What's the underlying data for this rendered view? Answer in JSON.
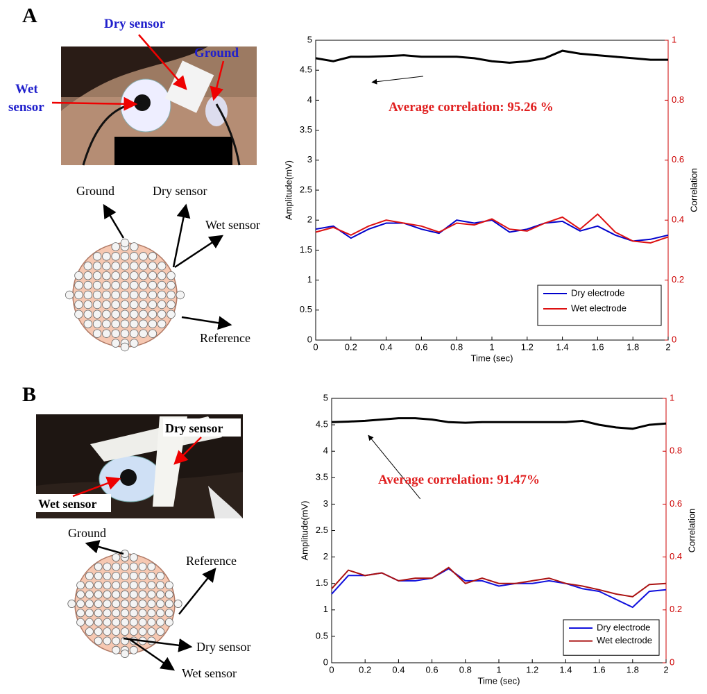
{
  "chart_data": [
    {
      "type": "line",
      "x": [
        0,
        0.1,
        0.2,
        0.3,
        0.4,
        0.5,
        0.6,
        0.7,
        0.8,
        0.9,
        1,
        1.1,
        1.2,
        1.3,
        1.4,
        1.5,
        1.6,
        1.7,
        1.8,
        1.9,
        2
      ],
      "xlabel": "Time (sec)",
      "ylabel": "Amplitude(mV)",
      "y2label": "Correlation",
      "xlim": [
        0,
        2
      ],
      "xticks": [
        0,
        0.2,
        0.4,
        0.6,
        0.8,
        1,
        1.2,
        1.4,
        1.6,
        1.8,
        2
      ],
      "ylim": [
        0,
        5
      ],
      "yticks": [
        0,
        0.5,
        1,
        1.5,
        2,
        2.5,
        3,
        3.5,
        4,
        4.5,
        5
      ],
      "y2lim": [
        0,
        1
      ],
      "y2ticks": [
        0,
        0.2,
        0.4,
        0.6,
        0.8,
        1
      ],
      "annotation": "Average correlation: 95.26 %",
      "legend": "lower right",
      "series": [
        {
          "axis": "y2",
          "color": "#000000",
          "values": [
            0.94,
            0.93,
            0.945,
            0.945,
            0.947,
            0.95,
            0.945,
            0.945,
            0.945,
            0.94,
            0.93,
            0.925,
            0.93,
            0.94,
            0.965,
            0.955,
            0.95,
            0.945,
            0.94,
            0.935,
            0.935
          ]
        },
        {
          "name": "Dry electrode",
          "color": "#0000cc",
          "values": [
            1.85,
            1.9,
            1.7,
            1.85,
            1.95,
            1.95,
            1.85,
            1.78,
            2.0,
            1.95,
            2.0,
            1.8,
            1.85,
            1.95,
            1.98,
            1.82,
            1.9,
            1.75,
            1.65,
            1.68,
            1.75
          ]
        },
        {
          "name": "Wet electrode",
          "color": "#dd1111",
          "values": [
            1.8,
            1.88,
            1.75,
            1.9,
            2.0,
            1.95,
            1.9,
            1.8,
            1.95,
            1.92,
            2.02,
            1.85,
            1.82,
            1.95,
            2.05,
            1.85,
            2.1,
            1.8,
            1.65,
            1.62,
            1.72
          ]
        }
      ]
    },
    {
      "type": "line",
      "x": [
        0,
        0.1,
        0.2,
        0.3,
        0.4,
        0.5,
        0.6,
        0.7,
        0.8,
        0.9,
        1,
        1.1,
        1.2,
        1.3,
        1.4,
        1.5,
        1.6,
        1.7,
        1.8,
        1.9,
        2
      ],
      "xlabel": "Time (sec)",
      "ylabel": "Amplitude(mV)",
      "y2label": "Correlation",
      "xlim": [
        0,
        2
      ],
      "xticks": [
        0,
        0.2,
        0.4,
        0.6,
        0.8,
        1,
        1.2,
        1.4,
        1.6,
        1.8,
        2
      ],
      "ylim": [
        0,
        5
      ],
      "yticks": [
        0,
        0.5,
        1,
        1.5,
        2,
        2.5,
        3,
        3.5,
        4,
        4.5,
        5
      ],
      "y2lim": [
        0,
        1
      ],
      "y2ticks": [
        0,
        0.2,
        0.4,
        0.6,
        0.8,
        1
      ],
      "annotation": "Average correlation: 91.47%",
      "legend": "lower right",
      "series": [
        {
          "axis": "y2",
          "color": "#000000",
          "values": [
            0.91,
            0.912,
            0.915,
            0.92,
            0.925,
            0.925,
            0.92,
            0.91,
            0.908,
            0.91,
            0.91,
            0.91,
            0.91,
            0.91,
            0.91,
            0.915,
            0.9,
            0.89,
            0.885,
            0.9,
            0.905
          ]
        },
        {
          "name": "Dry electrode",
          "color": "#1010dd",
          "values": [
            1.3,
            1.65,
            1.65,
            1.7,
            1.55,
            1.55,
            1.6,
            1.78,
            1.55,
            1.55,
            1.45,
            1.5,
            1.5,
            1.55,
            1.5,
            1.4,
            1.35,
            1.2,
            1.05,
            1.35,
            1.38
          ]
        },
        {
          "name": "Wet electrode",
          "color": "#aa1111",
          "values": [
            1.4,
            1.75,
            1.65,
            1.7,
            1.55,
            1.6,
            1.6,
            1.8,
            1.5,
            1.6,
            1.5,
            1.5,
            1.55,
            1.6,
            1.5,
            1.45,
            1.38,
            1.3,
            1.25,
            1.48,
            1.5
          ]
        }
      ]
    }
  ],
  "panels": [
    {
      "label": "A",
      "photo": {
        "dry": "Dry sensor",
        "ground": "Ground",
        "wet_lines": [
          "Wet",
          "sensor"
        ]
      },
      "diagram": {
        "ground": "Ground",
        "dry": "Dry sensor",
        "wet": "Wet sensor",
        "reference": "Reference"
      }
    },
    {
      "label": "B",
      "photo": {
        "dry": "Dry sensor",
        "wet": "Wet sensor"
      },
      "diagram": {
        "ground": "Ground",
        "reference": "Reference",
        "dry": "Dry sensor",
        "wet": "Wet sensor"
      }
    }
  ]
}
